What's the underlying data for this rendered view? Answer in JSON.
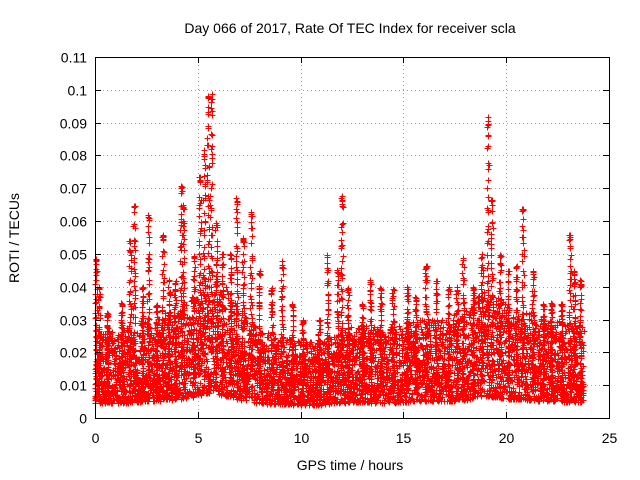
{
  "chart_data": {
    "type": "scatter",
    "title": "Day 066 of 2017, Rate Of TEC Index for receiver scla",
    "xlabel": "GPS time / hours",
    "ylabel": "ROTI / TECUs",
    "xlim": [
      0,
      25
    ],
    "ylim": [
      0,
      0.11
    ],
    "x_ticks": [
      "0",
      "5",
      "10",
      "15",
      "20",
      "25"
    ],
    "y_ticks": [
      "0",
      "0.01",
      "0.02",
      "0.03",
      "0.04",
      "0.05",
      "0.06",
      "0.07",
      "0.08",
      "0.09",
      "0.1",
      "0.11"
    ],
    "grid": true,
    "marker": "+",
    "series_color": "#ff0000",
    "x_start": 0.0,
    "x_end": 23.75,
    "x_step": 0.025,
    "typical_profile": [
      [
        0.0,
        0.014
      ],
      [
        1.0,
        0.015
      ],
      [
        2.0,
        0.016
      ],
      [
        3.0,
        0.017
      ],
      [
        4.0,
        0.019
      ],
      [
        5.0,
        0.022
      ],
      [
        5.5,
        0.026
      ],
      [
        6.0,
        0.024
      ],
      [
        7.0,
        0.019
      ],
      [
        8.0,
        0.015
      ],
      [
        9.0,
        0.014
      ],
      [
        10.0,
        0.013
      ],
      [
        11.0,
        0.013
      ],
      [
        12.0,
        0.015
      ],
      [
        13.0,
        0.016
      ],
      [
        14.0,
        0.015
      ],
      [
        15.0,
        0.016
      ],
      [
        16.0,
        0.017
      ],
      [
        17.0,
        0.017
      ],
      [
        18.0,
        0.018
      ],
      [
        19.0,
        0.022
      ],
      [
        20.0,
        0.02
      ],
      [
        21.0,
        0.018
      ],
      [
        22.0,
        0.017
      ],
      [
        23.0,
        0.016
      ],
      [
        23.75,
        0.016
      ]
    ],
    "bursts": [
      {
        "x": 0.05,
        "peak": 0.049
      },
      {
        "x": 0.2,
        "peak": 0.04
      },
      {
        "x": 0.6,
        "peak": 0.032
      },
      {
        "x": 1.3,
        "peak": 0.035
      },
      {
        "x": 1.7,
        "peak": 0.055
      },
      {
        "x": 1.9,
        "peak": 0.065
      },
      {
        "x": 2.3,
        "peak": 0.04
      },
      {
        "x": 2.6,
        "peak": 0.062
      },
      {
        "x": 3.0,
        "peak": 0.035
      },
      {
        "x": 3.3,
        "peak": 0.056
      },
      {
        "x": 3.6,
        "peak": 0.043
      },
      {
        "x": 3.9,
        "peak": 0.042
      },
      {
        "x": 4.2,
        "peak": 0.071
      },
      {
        "x": 4.3,
        "peak": 0.065
      },
      {
        "x": 4.8,
        "peak": 0.05
      },
      {
        "x": 5.1,
        "peak": 0.074
      },
      {
        "x": 5.3,
        "peak": 0.082
      },
      {
        "x": 5.5,
        "peak": 0.1
      },
      {
        "x": 5.65,
        "peak": 0.099
      },
      {
        "x": 5.9,
        "peak": 0.06
      },
      {
        "x": 6.2,
        "peak": 0.05
      },
      {
        "x": 6.6,
        "peak": 0.05
      },
      {
        "x": 6.9,
        "peak": 0.067
      },
      {
        "x": 7.2,
        "peak": 0.055
      },
      {
        "x": 7.6,
        "peak": 0.063
      },
      {
        "x": 8.0,
        "peak": 0.045
      },
      {
        "x": 8.6,
        "peak": 0.04
      },
      {
        "x": 9.1,
        "peak": 0.048
      },
      {
        "x": 9.6,
        "peak": 0.035
      },
      {
        "x": 10.1,
        "peak": 0.03
      },
      {
        "x": 10.9,
        "peak": 0.03
      },
      {
        "x": 11.3,
        "peak": 0.05
      },
      {
        "x": 11.8,
        "peak": 0.045
      },
      {
        "x": 12.0,
        "peak": 0.068
      },
      {
        "x": 12.3,
        "peak": 0.04
      },
      {
        "x": 13.0,
        "peak": 0.035
      },
      {
        "x": 13.4,
        "peak": 0.042
      },
      {
        "x": 13.9,
        "peak": 0.04
      },
      {
        "x": 14.5,
        "peak": 0.04
      },
      {
        "x": 15.2,
        "peak": 0.04
      },
      {
        "x": 15.6,
        "peak": 0.037
      },
      {
        "x": 16.1,
        "peak": 0.047
      },
      {
        "x": 16.6,
        "peak": 0.042
      },
      {
        "x": 17.2,
        "peak": 0.04
      },
      {
        "x": 17.6,
        "peak": 0.04
      },
      {
        "x": 17.9,
        "peak": 0.049
      },
      {
        "x": 18.4,
        "peak": 0.04
      },
      {
        "x": 18.8,
        "peak": 0.05
      },
      {
        "x": 19.1,
        "peak": 0.092
      },
      {
        "x": 19.3,
        "peak": 0.068
      },
      {
        "x": 19.7,
        "peak": 0.05
      },
      {
        "x": 20.1,
        "peak": 0.045
      },
      {
        "x": 20.5,
        "peak": 0.047
      },
      {
        "x": 20.8,
        "peak": 0.064
      },
      {
        "x": 21.3,
        "peak": 0.045
      },
      {
        "x": 21.8,
        "peak": 0.035
      },
      {
        "x": 22.2,
        "peak": 0.035
      },
      {
        "x": 22.7,
        "peak": 0.035
      },
      {
        "x": 23.1,
        "peak": 0.056
      },
      {
        "x": 23.3,
        "peak": 0.045
      },
      {
        "x": 23.6,
        "peak": 0.042
      }
    ]
  }
}
